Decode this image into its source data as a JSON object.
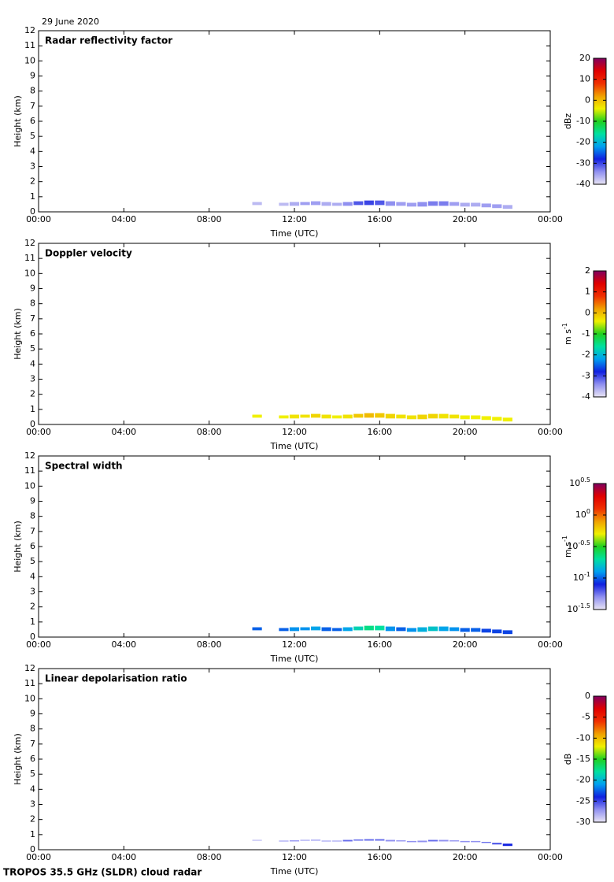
{
  "header": "29 June 2020",
  "footer": "TROPOS 35.5 GHz (SLDR) cloud radar",
  "colormap": [
    "#e8e4f4",
    "#9090f0",
    "#1020e0",
    "#00a0f0",
    "#00e0a0",
    "#20d020",
    "#f0f000",
    "#f0a000",
    "#f03000",
    "#e00000",
    "#800060"
  ],
  "chart_data": [
    {
      "type": "time-height",
      "title": "Radar reflectivity factor",
      "xlabel": "Time (UTC)",
      "ylabel": "Height (km)",
      "xlim": [
        0,
        24
      ],
      "xticks": [
        {
          "value": 0,
          "label": "00:00"
        },
        {
          "value": 4,
          "label": "04:00"
        },
        {
          "value": 8,
          "label": "08:00"
        },
        {
          "value": 12,
          "label": "12:00"
        },
        {
          "value": 16,
          "label": "16:00"
        },
        {
          "value": 20,
          "label": "20:00"
        },
        {
          "value": 24,
          "label": "00:00"
        }
      ],
      "ylim": [
        0,
        12
      ],
      "yticks": [
        0,
        1,
        2,
        3,
        4,
        5,
        6,
        7,
        8,
        9,
        10,
        11,
        12
      ],
      "x": [
        10.25,
        11.5,
        12,
        12.5,
        13,
        13.5,
        14,
        14.5,
        15,
        15.5,
        16,
        16.5,
        17,
        17.5,
        18,
        18.5,
        19,
        19.5,
        20,
        20.5,
        21,
        21.5,
        22
      ],
      "base": [
        0.45,
        0.4,
        0.4,
        0.45,
        0.45,
        0.4,
        0.4,
        0.4,
        0.45,
        0.45,
        0.45,
        0.4,
        0.4,
        0.35,
        0.35,
        0.4,
        0.4,
        0.4,
        0.35,
        0.35,
        0.3,
        0.25,
        0.2
      ],
      "top": [
        0.65,
        0.6,
        0.65,
        0.65,
        0.7,
        0.65,
        0.6,
        0.65,
        0.7,
        0.75,
        0.75,
        0.7,
        0.65,
        0.6,
        0.65,
        0.7,
        0.7,
        0.65,
        0.6,
        0.6,
        0.55,
        0.5,
        0.45
      ],
      "values": [
        -37,
        -37,
        -36,
        -35,
        -35,
        -36,
        -36,
        -34,
        -31,
        -30,
        -31,
        -34,
        -35,
        -35,
        -34,
        -33,
        -33,
        -35,
        -36,
        -36,
        -35,
        -35,
        -36
      ],
      "colorbar": {
        "label": "dBz",
        "lim": [
          -40,
          20
        ],
        "ticks": [
          -40,
          -30,
          -20,
          -10,
          0,
          10,
          20
        ]
      }
    },
    {
      "type": "time-height",
      "title": "Doppler velocity",
      "xlabel": "Time (UTC)",
      "ylabel": "Height (km)",
      "xlim": [
        0,
        24
      ],
      "xticks": [
        {
          "value": 0,
          "label": "00:00"
        },
        {
          "value": 4,
          "label": "04:00"
        },
        {
          "value": 8,
          "label": "08:00"
        },
        {
          "value": 12,
          "label": "12:00"
        },
        {
          "value": 16,
          "label": "16:00"
        },
        {
          "value": 20,
          "label": "20:00"
        },
        {
          "value": 24,
          "label": "00:00"
        }
      ],
      "ylim": [
        0,
        12
      ],
      "yticks": [
        0,
        1,
        2,
        3,
        4,
        5,
        6,
        7,
        8,
        9,
        10,
        11,
        12
      ],
      "x": [
        10.25,
        11.5,
        12,
        12.5,
        13,
        13.5,
        14,
        14.5,
        15,
        15.5,
        16,
        16.5,
        17,
        17.5,
        18,
        18.5,
        19,
        19.5,
        20,
        20.5,
        21,
        21.5,
        22
      ],
      "base": [
        0.45,
        0.4,
        0.4,
        0.45,
        0.45,
        0.4,
        0.4,
        0.4,
        0.45,
        0.45,
        0.45,
        0.4,
        0.4,
        0.35,
        0.35,
        0.4,
        0.4,
        0.4,
        0.35,
        0.35,
        0.3,
        0.25,
        0.2
      ],
      "top": [
        0.65,
        0.6,
        0.65,
        0.65,
        0.7,
        0.65,
        0.6,
        0.65,
        0.7,
        0.75,
        0.75,
        0.7,
        0.65,
        0.6,
        0.65,
        0.7,
        0.7,
        0.65,
        0.6,
        0.6,
        0.55,
        0.5,
        0.45
      ],
      "values": [
        -0.4,
        -0.4,
        -0.3,
        -0.3,
        -0.2,
        -0.3,
        -0.4,
        -0.3,
        -0.1,
        0,
        -0.1,
        -0.2,
        -0.3,
        -0.3,
        -0.2,
        -0.2,
        -0.3,
        -0.3,
        -0.4,
        -0.4,
        -0.4,
        -0.4,
        -0.4
      ],
      "colorbar": {
        "label": "m s",
        "exponent": "-1",
        "lim": [
          -4,
          2
        ],
        "ticks": [
          -4,
          -3,
          -2,
          -1,
          0,
          1,
          2
        ]
      }
    },
    {
      "type": "time-height",
      "title": "Spectral width",
      "xlabel": "Time (UTC)",
      "ylabel": "Height (km)",
      "xlim": [
        0,
        24
      ],
      "xticks": [
        {
          "value": 0,
          "label": "00:00"
        },
        {
          "value": 4,
          "label": "04:00"
        },
        {
          "value": 8,
          "label": "08:00"
        },
        {
          "value": 12,
          "label": "12:00"
        },
        {
          "value": 16,
          "label": "16:00"
        },
        {
          "value": 20,
          "label": "20:00"
        },
        {
          "value": 24,
          "label": "00:00"
        }
      ],
      "ylim": [
        0,
        12
      ],
      "yticks": [
        0,
        1,
        2,
        3,
        4,
        5,
        6,
        7,
        8,
        9,
        10,
        11,
        12
      ],
      "x": [
        10.25,
        11.5,
        12,
        12.5,
        13,
        13.5,
        14,
        14.5,
        15,
        15.5,
        16,
        16.5,
        17,
        17.5,
        18,
        18.5,
        19,
        19.5,
        20,
        20.5,
        21,
        21.5,
        22
      ],
      "base": [
        0.45,
        0.4,
        0.4,
        0.45,
        0.45,
        0.4,
        0.4,
        0.4,
        0.45,
        0.45,
        0.45,
        0.4,
        0.4,
        0.35,
        0.35,
        0.4,
        0.4,
        0.4,
        0.35,
        0.35,
        0.3,
        0.25,
        0.2
      ],
      "top": [
        0.65,
        0.6,
        0.65,
        0.65,
        0.7,
        0.65,
        0.6,
        0.65,
        0.7,
        0.75,
        0.75,
        0.7,
        0.65,
        0.6,
        0.65,
        0.7,
        0.7,
        0.65,
        0.6,
        0.6,
        0.55,
        0.5,
        0.45
      ],
      "values": [
        0.1,
        0.1,
        0.12,
        0.12,
        0.13,
        0.1,
        0.1,
        0.13,
        0.18,
        0.22,
        0.2,
        0.12,
        0.1,
        0.12,
        0.14,
        0.16,
        0.13,
        0.12,
        0.1,
        0.1,
        0.09,
        0.09,
        0.09
      ],
      "colorbar": {
        "label": "m s",
        "exponent": "-1",
        "log": true,
        "lim": [
          0.0316,
          3.162
        ],
        "ticks": [
          {
            "value": 0.0316,
            "label": "10",
            "exponent": "-1.5"
          },
          {
            "value": 0.1,
            "label": "10",
            "exponent": "-1"
          },
          {
            "value": 0.316,
            "label": "10",
            "exponent": "-0.5"
          },
          {
            "value": 1,
            "label": "10",
            "exponent": "0"
          },
          {
            "value": 3.162,
            "label": "10",
            "exponent": "0.5"
          }
        ]
      }
    },
    {
      "type": "time-height",
      "title": "Linear depolarisation ratio",
      "xlabel": "Time (UTC)",
      "ylabel": "Height (km)",
      "xlim": [
        0,
        24
      ],
      "xticks": [
        {
          "value": 0,
          "label": "00:00"
        },
        {
          "value": 4,
          "label": "04:00"
        },
        {
          "value": 8,
          "label": "08:00"
        },
        {
          "value": 12,
          "label": "12:00"
        },
        {
          "value": 16,
          "label": "16:00"
        },
        {
          "value": 20,
          "label": "20:00"
        },
        {
          "value": 24,
          "label": "00:00"
        }
      ],
      "ylim": [
        0,
        12
      ],
      "yticks": [
        0,
        1,
        2,
        3,
        4,
        5,
        6,
        7,
        8,
        9,
        10,
        11,
        12
      ],
      "x": [
        10.25,
        11.5,
        12,
        12.5,
        13,
        13.5,
        14,
        14.5,
        15,
        15.5,
        16,
        16.5,
        17,
        17.5,
        18,
        18.5,
        19,
        19.5,
        20,
        20.5,
        21,
        21.5,
        22
      ],
      "base": [
        0.6,
        0.55,
        0.55,
        0.6,
        0.6,
        0.55,
        0.55,
        0.55,
        0.6,
        0.6,
        0.6,
        0.55,
        0.55,
        0.5,
        0.5,
        0.55,
        0.55,
        0.55,
        0.5,
        0.5,
        0.45,
        0.35,
        0.25
      ],
      "top": [
        0.65,
        0.6,
        0.62,
        0.65,
        0.66,
        0.6,
        0.6,
        0.65,
        0.68,
        0.7,
        0.7,
        0.65,
        0.62,
        0.58,
        0.6,
        0.65,
        0.65,
        0.62,
        0.58,
        0.58,
        0.52,
        0.45,
        0.4
      ],
      "values": [
        -28,
        -27,
        -27,
        -27,
        -27,
        -27,
        -27,
        -26,
        -26,
        -26,
        -26,
        -27,
        -27,
        -27,
        -27,
        -26,
        -27,
        -27,
        -27,
        -27,
        -26,
        -25,
        -24
      ],
      "colorbar": {
        "label": "dB",
        "lim": [
          -30,
          0
        ],
        "ticks": [
          -30,
          -25,
          -20,
          -15,
          -10,
          -5,
          0
        ]
      }
    }
  ]
}
